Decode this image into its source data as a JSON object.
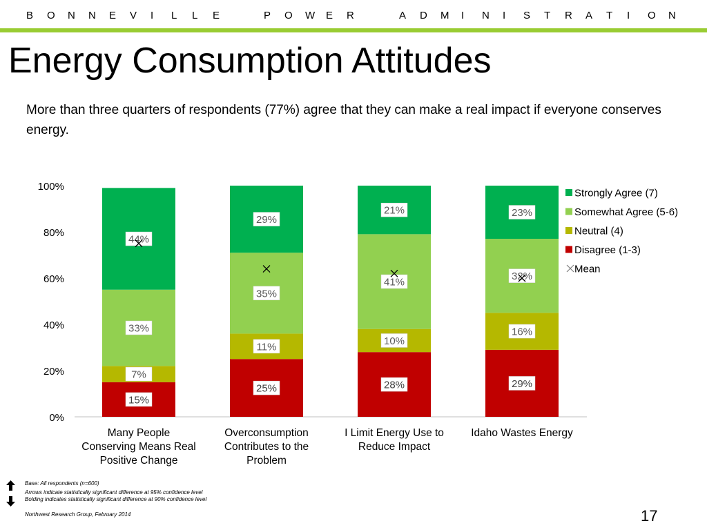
{
  "header": {
    "org_letters": [
      "B",
      "O",
      "N",
      "N",
      "E",
      "V",
      "I",
      "L",
      "L",
      "E",
      "P",
      "O",
      "W",
      "E",
      "R",
      "A",
      "D",
      "M",
      "I",
      "N",
      "I",
      "S",
      "T",
      "R",
      "A",
      "T",
      "I",
      "O",
      "N"
    ],
    "title": "Energy Consumption Attitudes",
    "subtitle": "More than three quarters of respondents (77%) agree that they can make a real impact if everyone conserves energy.",
    "accent_color": "#99cc33"
  },
  "chart_data": {
    "type": "bar",
    "stacked": true,
    "categories": [
      "Many People Conserving Means Real Positive Change",
      "Overconsumption Contributes to the Problem",
      "I Limit Energy Use to Reduce Impact",
      "Idaho Wastes Energy"
    ],
    "series": [
      {
        "name": "Disagree (1-3)",
        "color": "#c00000",
        "values": [
          15,
          25,
          28,
          29
        ]
      },
      {
        "name": "Neutral (4)",
        "color": "#b5b800",
        "values": [
          7,
          11,
          10,
          16
        ]
      },
      {
        "name": "Somewhat Agree (5-6)",
        "color": "#92d050",
        "values": [
          33,
          35,
          41,
          32
        ]
      },
      {
        "name": "Strongly Agree (7)",
        "color": "#00b050",
        "values": [
          44,
          29,
          21,
          23
        ]
      }
    ],
    "mean": {
      "name": "Mean",
      "values": [
        75,
        64,
        62,
        60
      ]
    },
    "ylim": [
      0,
      100
    ],
    "yticks": [
      "0%",
      "20%",
      "40%",
      "60%",
      "80%",
      "100%"
    ],
    "legend": {
      "placement": "right",
      "order": [
        "Strongly Agree (7)",
        "Somewhat Agree (5-6)",
        "Neutral (4)",
        "Disagree (1-3)",
        "Mean"
      ]
    }
  },
  "footer": {
    "base": "Base: All respondents (n=600)",
    "arrows_note": "Arrows indicate statistically significant difference at 95% confidence level",
    "bolding_note": "Bolding indicates statistically significant difference at 90% confidence level",
    "source": "Northwest Research Group, February 2014",
    "page_number": "17"
  }
}
